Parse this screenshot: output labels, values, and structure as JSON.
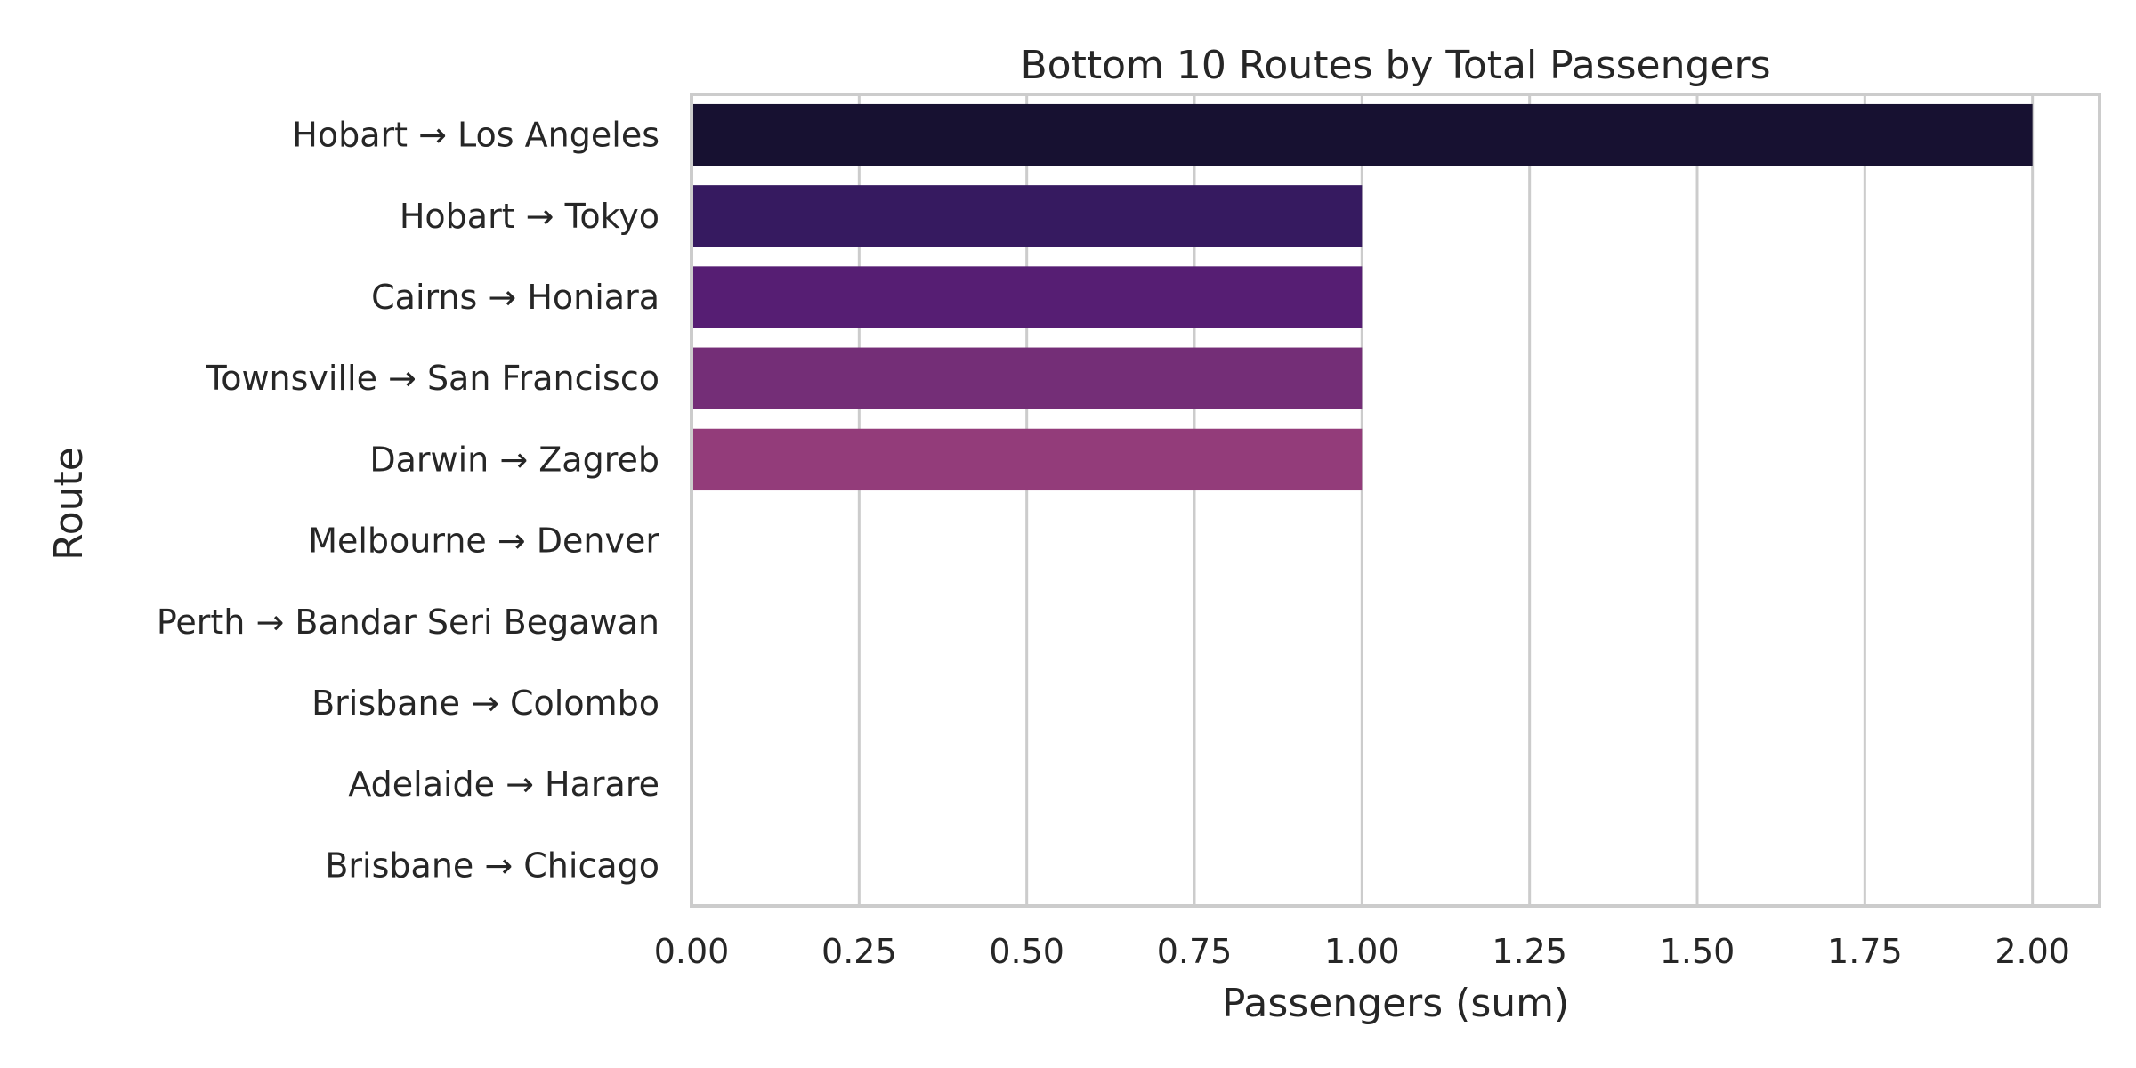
{
  "chart_data": {
    "type": "bar",
    "orientation": "horizontal",
    "title": "Bottom 10 Routes by Total Passengers",
    "xlabel": "Passengers (sum)",
    "ylabel": "Route",
    "xlim": [
      0,
      2.1
    ],
    "xticks": [
      0,
      0.25,
      0.5,
      0.75,
      1.0,
      1.25,
      1.5,
      1.75,
      2.0
    ],
    "xtick_labels": [
      "0.00",
      "0.25",
      "0.50",
      "0.75",
      "1.00",
      "1.25",
      "1.50",
      "1.75",
      "2.00"
    ],
    "grid": true,
    "categories": [
      "Hobart → Los Angeles",
      "Hobart → Tokyo",
      "Cairns → Honiara",
      "Townsville → San Francisco",
      "Darwin → Zagreb",
      "Melbourne → Denver",
      "Perth → Bandar Seri Begawan",
      "Brisbane → Colombo",
      "Adelaide → Harare",
      "Brisbane → Chicago"
    ],
    "values": [
      2,
      1,
      1,
      1,
      1,
      0,
      0,
      0,
      0,
      0
    ],
    "colors": [
      "#171131",
      "#361a60",
      "#561e73",
      "#742e77",
      "#933c7a",
      "#b24b76",
      "#cf5c6a",
      "#e6745e",
      "#f3965f",
      "#f9b779"
    ]
  }
}
